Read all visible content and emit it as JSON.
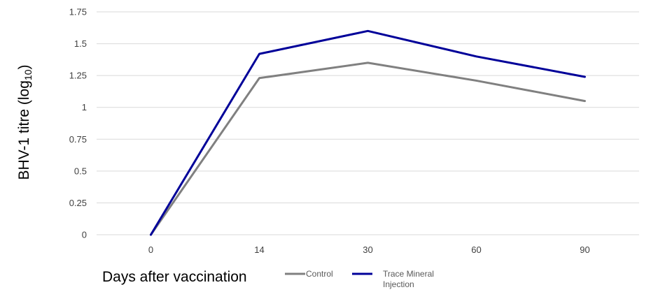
{
  "chart_data": {
    "type": "line",
    "categories": [
      "0",
      "14",
      "30",
      "60",
      "90"
    ],
    "series": [
      {
        "name": "Control",
        "values": [
          0,
          1.23,
          1.35,
          1.21,
          1.05
        ],
        "color": "#808080"
      },
      {
        "name": "Trace Mineral Injection",
        "values": [
          0,
          1.42,
          1.6,
          1.4,
          1.24
        ],
        "color": "#000099"
      }
    ],
    "title": "",
    "xlabel": "Days after vaccination",
    "ylabel": "BHV-1 titre (log 10)",
    "ylabel_parts": {
      "main": "BHV-1 titre (log",
      "sub": "10",
      "close": ")"
    },
    "ylim": [
      0,
      1.75
    ],
    "yticks": [
      "0",
      "0.25",
      "0.5",
      "0.75",
      "1",
      "1.25",
      "1.5",
      "1.75"
    ],
    "grid": true,
    "gridline_color": "#d9d9d9",
    "legend_position": "bottom",
    "legend_labels": {
      "control": "Control",
      "trace_line1": "Trace Mineral",
      "trace_line2": "Injection"
    }
  }
}
